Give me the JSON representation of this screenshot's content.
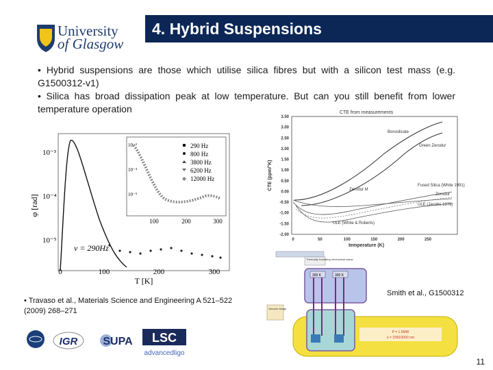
{
  "header": {
    "logo": {
      "line1": "University",
      "line2": "of Glasgow"
    },
    "title": "4. Hybrid Suspensions"
  },
  "bullets": [
    "• Hybrid suspensions are those which utilise silica fibres but with a silicon test mass (e.g. G1500312-v1)",
    "• Silica has broad dissipation peak at low temperature. But can you still benefit from lower temperature operation"
  ],
  "loss_figure": {
    "y_label": "φ [rad]",
    "x_label": "T [K]",
    "annotation": "ν = 290Hz",
    "y_ticks": [
      "10⁻³",
      "10⁻⁴",
      "10⁻⁵"
    ],
    "x_ticks": [
      "0",
      "100",
      "200",
      "300"
    ],
    "inset": {
      "y_ticks": [
        "10⁻³",
        "10⁻⁴",
        "10⁻⁵"
      ],
      "x_ticks": [
        "100",
        "200",
        "300"
      ],
      "legend": [
        "290 Hz",
        "800 Hz",
        "3800 Hz",
        "6200 Hz",
        "12000 Hz"
      ]
    }
  },
  "cte_figure": {
    "title": "CTE from measurements",
    "y_label": "CTE (ppm/°K)",
    "x_label": "temperature (K)",
    "y_ticks": [
      "3.50",
      "3.00",
      "2.50",
      "2.00",
      "1.50",
      "1.00",
      "0.50",
      "0.00",
      "-0.50",
      "-1.00",
      "-1.50",
      "-2.00"
    ],
    "x_ticks": [
      "0",
      "50",
      "100",
      "150",
      "200",
      "250"
    ],
    "curve_labels": [
      "Borosilicate",
      "Green Zerodur",
      "Zerodur M",
      "Fused Silica (White 1991)",
      "Zerodur",
      "ULE (Jacobs 1976)",
      "ULE (White & Roberts)"
    ]
  },
  "diagram": {
    "clamp_label": "Thermally insulating mechanical clamp",
    "stage_labels": [
      "300 K",
      "300 K"
    ],
    "flange_label": "Vacuum flange",
    "beam_labels": [
      "P = 1.5MW",
      "λ = 1550/2000 nm"
    ]
  },
  "captions": {
    "right": "Smith et al., G1500312",
    "left": "• Travaso et al., Materials Science and Engineering A 521–522 (2009) 268–271"
  },
  "footer": {
    "logos": [
      "IGR",
      "SUPA",
      "LSC",
      "advancedligo"
    ],
    "page_number": "11"
  }
}
